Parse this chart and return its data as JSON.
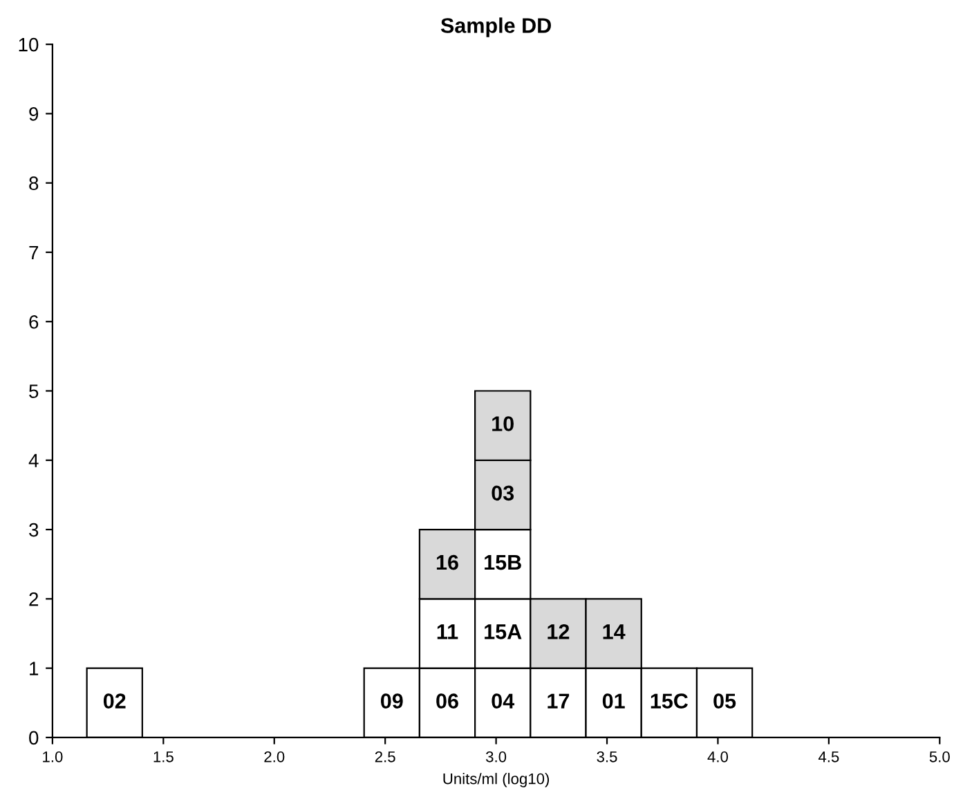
{
  "chart_data": {
    "type": "bar",
    "stacked": true,
    "title": "Sample DD",
    "xlabel": "Units/ml (log10)",
    "series": [
      {
        "x": [
          1.28,
          2.53,
          2.78,
          3.03,
          3.28,
          3.53,
          3.78,
          4.03
        ],
        "values": [
          1,
          1,
          1,
          1,
          1,
          1,
          1,
          1
        ],
        "colors": [
          "#ffffff",
          "#ffffff",
          "#ffffff",
          "#ffffff",
          "#ffffff",
          "#ffffff",
          "#ffffff",
          "#ffffff"
        ]
      },
      {
        "x": [
          2.78,
          3.03,
          3.28,
          3.53
        ],
        "values": [
          1,
          1,
          1,
          1
        ],
        "colors": [
          "#ffffff",
          "#ffffff",
          "#d9d9d9",
          "#d9d9d9"
        ]
      },
      {
        "x": [
          2.78,
          3.03
        ],
        "values": [
          1,
          1
        ],
        "colors": [
          "#d9d9d9",
          "#ffffff"
        ]
      },
      {
        "x": [
          3.03
        ],
        "values": [
          1
        ],
        "colors": [
          "#d9d9d9"
        ]
      },
      {
        "x": [
          3.03
        ],
        "values": [
          1
        ],
        "colors": [
          "#d9d9d9"
        ]
      }
    ],
    "annotations": [
      {
        "text": "02",
        "x": 1.28,
        "y": 1
      },
      {
        "text": "09",
        "x": 2.53,
        "y": 1
      },
      {
        "text": "06",
        "x": 2.78,
        "y": 1
      },
      {
        "text": "04",
        "x": 3.03,
        "y": 1
      },
      {
        "text": "17",
        "x": 3.28,
        "y": 1
      },
      {
        "text": "01",
        "x": 3.53,
        "y": 1
      },
      {
        "text": "15C",
        "x": 3.78,
        "y": 1
      },
      {
        "text": "05",
        "x": 4.03,
        "y": 1
      },
      {
        "text": "11",
        "x": 2.78,
        "y": 2
      },
      {
        "text": "15A",
        "x": 3.03,
        "y": 2
      },
      {
        "text": "12",
        "x": 3.28,
        "y": 2
      },
      {
        "text": "14",
        "x": 3.53,
        "y": 2
      },
      {
        "text": "16",
        "x": 2.78,
        "y": 3
      },
      {
        "text": "15B",
        "x": 3.03,
        "y": 3
      },
      {
        "text": "03",
        "x": 3.03,
        "y": 4
      },
      {
        "text": "10",
        "x": 3.03,
        "y": 5
      }
    ],
    "xlim": [
      1.0,
      5.0
    ],
    "xticks": [
      {
        "value": 1.0,
        "label": "1.0"
      },
      {
        "value": 1.5,
        "label": "1.5"
      },
      {
        "value": 2.0,
        "label": "2.0"
      },
      {
        "value": 2.5,
        "label": "2.5"
      },
      {
        "value": 3.0,
        "label": "3.0"
      },
      {
        "value": 3.5,
        "label": "3.5"
      },
      {
        "value": 4.0,
        "label": "4.0"
      },
      {
        "value": 4.5,
        "label": "4.5"
      },
      {
        "value": 5.0,
        "label": "5.0"
      }
    ],
    "ylim": [
      0,
      10
    ],
    "yticks": [
      0,
      1,
      2,
      3,
      4,
      5,
      6,
      7,
      8,
      9,
      10
    ],
    "grid": false
  }
}
